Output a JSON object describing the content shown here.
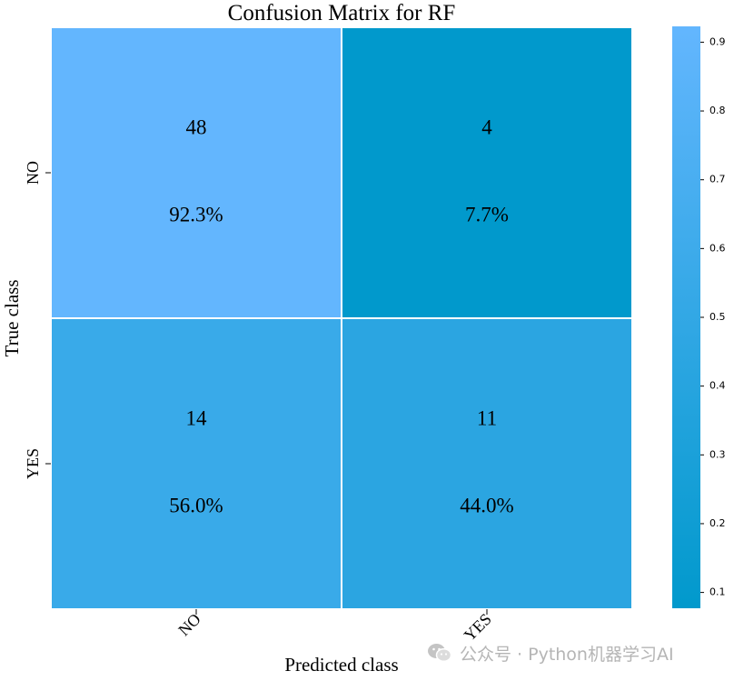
{
  "chart_data": {
    "type": "heatmap",
    "title": "Confusion Matrix for RF",
    "xlabel": "Predicted class",
    "ylabel": "True class",
    "x_categories": [
      "NO",
      "YES"
    ],
    "y_categories": [
      "NO",
      "YES"
    ],
    "counts": [
      [
        48,
        4
      ],
      [
        14,
        11
      ]
    ],
    "percent_labels": [
      [
        "92.3%",
        "7.7%"
      ],
      [
        "56.0%",
        "44.0%"
      ]
    ],
    "values": [
      [
        0.923,
        0.077
      ],
      [
        0.56,
        0.44
      ]
    ],
    "colorbar": {
      "range": [
        0.077,
        0.923
      ],
      "ticks": [
        0.1,
        0.2,
        0.3,
        0.4,
        0.5,
        0.6,
        0.7,
        0.8,
        0.9
      ],
      "tick_labels": [
        "0.1",
        "0.2",
        "0.3",
        "0.4",
        "0.5",
        "0.6",
        "0.7",
        "0.8",
        "0.9"
      ],
      "color_low": "#0199cc",
      "color_high": "#63b6fe"
    },
    "grid_line_color": "#ffffff"
  },
  "watermark": {
    "text": "公众号 · Python机器学习AI",
    "icon": "wechat-icon"
  }
}
